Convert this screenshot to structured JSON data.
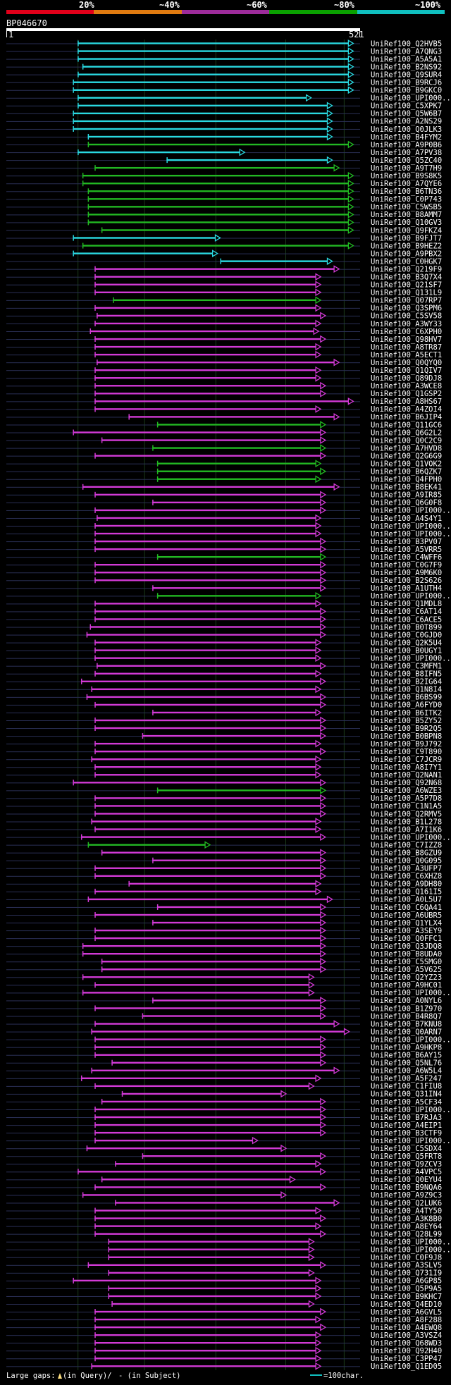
{
  "query_id": "BP046670",
  "query_start": "1",
  "query_end": "521",
  "query_length": 521,
  "scale_labels": [
    "20%",
    "~40%",
    "~60%",
    "~80%",
    "~100%"
  ],
  "identity_colors": [
    "#e2001a",
    "#e07a10",
    "#9c2b9a",
    "#0aa000",
    "#10c0c0"
  ],
  "gridlines": [
    105,
    203,
    308,
    411,
    497
  ],
  "legend": {
    "large_gaps": "Large gaps:",
    "in_query": "(in Query)/",
    "in_subject": "- (in Subject)",
    "scale_text": "=100char."
  },
  "hits": [
    {
      "id": "UniRef100_Q2HVB5",
      "start": 105,
      "end": 511,
      "color": "cyan"
    },
    {
      "id": "UniRef100_A7QNG3",
      "start": 105,
      "end": 511,
      "color": "cyan"
    },
    {
      "id": "UniRef100_A5A5A1",
      "start": 105,
      "end": 511,
      "color": "cyan"
    },
    {
      "id": "UniRef100_B2NS92",
      "start": 112,
      "end": 511,
      "color": "cyan"
    },
    {
      "id": "UniRef100_Q9SUR4",
      "start": 105,
      "end": 511,
      "color": "cyan"
    },
    {
      "id": "UniRef100_B9RCJ6",
      "start": 98,
      "end": 511,
      "color": "cyan"
    },
    {
      "id": "UniRef100_B9GKC0",
      "start": 98,
      "end": 511,
      "color": "cyan"
    },
    {
      "id": "UniRef100_UPI000..",
      "start": 105,
      "end": 449,
      "color": "cyan"
    },
    {
      "id": "UniRef100_C5XPK7",
      "start": 105,
      "end": 480,
      "color": "cyan"
    },
    {
      "id": "UniRef100_Q5W6B7",
      "start": 98,
      "end": 480,
      "color": "cyan"
    },
    {
      "id": "UniRef100_A2NS29",
      "start": 98,
      "end": 480,
      "color": "cyan"
    },
    {
      "id": "UniRef100_Q0JLK3",
      "start": 98,
      "end": 480,
      "color": "cyan"
    },
    {
      "id": "UniRef100_B4FYM2",
      "start": 120,
      "end": 480,
      "color": "cyan"
    },
    {
      "id": "UniRef100_A9P0B6",
      "start": 120,
      "end": 511,
      "color": "green"
    },
    {
      "id": "UniRef100_A7PV38",
      "start": 105,
      "end": 351,
      "color": "cyan"
    },
    {
      "id": "UniRef100_Q5ZC40",
      "start": 236,
      "end": 480,
      "color": "cyan"
    },
    {
      "id": "UniRef100_A9T7H9",
      "start": 130,
      "end": 490,
      "color": "green"
    },
    {
      "id": "UniRef100_B9S8K5",
      "start": 112,
      "end": 511,
      "color": "green"
    },
    {
      "id": "UniRef100_A7QYE6",
      "start": 112,
      "end": 511,
      "color": "green"
    },
    {
      "id": "UniRef100_B6TN36",
      "start": 120,
      "end": 511,
      "color": "green"
    },
    {
      "id": "UniRef100_C0P743",
      "start": 120,
      "end": 511,
      "color": "green"
    },
    {
      "id": "UniRef100_C5WSB5",
      "start": 120,
      "end": 511,
      "color": "green"
    },
    {
      "id": "UniRef100_B8AMM7",
      "start": 120,
      "end": 511,
      "color": "green"
    },
    {
      "id": "UniRef100_Q10GV3",
      "start": 120,
      "end": 511,
      "color": "green"
    },
    {
      "id": "UniRef100_Q9FKZ4",
      "start": 140,
      "end": 511,
      "color": "green"
    },
    {
      "id": "UniRef100_B9FJT7",
      "start": 98,
      "end": 315,
      "color": "cyan"
    },
    {
      "id": "UniRef100_B9HEZ2",
      "start": 112,
      "end": 511,
      "color": "green"
    },
    {
      "id": "UniRef100_A9PBX2",
      "start": 98,
      "end": 311,
      "color": "cyan"
    },
    {
      "id": "UniRef100_C0HGK7",
      "start": 315,
      "end": 480,
      "color": "cyan"
    },
    {
      "id": "UniRef100_Q219F9",
      "start": 130,
      "end": 490,
      "color": "magenta"
    },
    {
      "id": "UniRef100_B3Q7X4",
      "start": 130,
      "end": 463,
      "color": "magenta"
    },
    {
      "id": "UniRef100_Q21SF7",
      "start": 130,
      "end": 463,
      "color": "magenta"
    },
    {
      "id": "UniRef100_Q131L9",
      "start": 130,
      "end": 463,
      "color": "magenta"
    },
    {
      "id": "UniRef100_Q07RP7",
      "start": 157,
      "end": 463,
      "color": "green"
    },
    {
      "id": "UniRef100_Q3SPM6",
      "start": 130,
      "end": 463,
      "color": "magenta"
    },
    {
      "id": "UniRef100_C5SV58",
      "start": 133,
      "end": 470,
      "color": "magenta"
    },
    {
      "id": "UniRef100_A3WY33",
      "start": 130,
      "end": 463,
      "color": "magenta"
    },
    {
      "id": "UniRef100_C6XPH0",
      "start": 123,
      "end": 460,
      "color": "magenta"
    },
    {
      "id": "UniRef100_Q98HV7",
      "start": 130,
      "end": 470,
      "color": "magenta"
    },
    {
      "id": "UniRef100_A8TR87",
      "start": 130,
      "end": 463,
      "color": "magenta"
    },
    {
      "id": "UniRef100_A5ECT1",
      "start": 130,
      "end": 463,
      "color": "magenta"
    },
    {
      "id": "UniRef100_Q0QYQ0",
      "start": 133,
      "end": 490,
      "color": "magenta"
    },
    {
      "id": "UniRef100_Q1QIV7",
      "start": 130,
      "end": 463,
      "color": "magenta"
    },
    {
      "id": "UniRef100_Q89DJ8",
      "start": 130,
      "end": 463,
      "color": "magenta"
    },
    {
      "id": "UniRef100_A3WCE8",
      "start": 130,
      "end": 470,
      "color": "magenta"
    },
    {
      "id": "UniRef100_Q1GSP2",
      "start": 130,
      "end": 470,
      "color": "magenta"
    },
    {
      "id": "UniRef100_A8HS67",
      "start": 130,
      "end": 511,
      "color": "magenta"
    },
    {
      "id": "UniRef100_A4ZOI4",
      "start": 130,
      "end": 463,
      "color": "magenta"
    },
    {
      "id": "UniRef100_B6JIP4",
      "start": 180,
      "end": 490,
      "color": "magenta"
    },
    {
      "id": "UniRef100_Q11GC6",
      "start": 222,
      "end": 470,
      "color": "green"
    },
    {
      "id": "UniRef100_Q6G2L2",
      "start": 98,
      "end": 470,
      "color": "magenta"
    },
    {
      "id": "UniRef100_Q0C2C9",
      "start": 140,
      "end": 470,
      "color": "magenta"
    },
    {
      "id": "UniRef100_A7HVD8",
      "start": 215,
      "end": 470,
      "color": "green"
    },
    {
      "id": "UniRef100_Q2G6G9",
      "start": 130,
      "end": 470,
      "color": "magenta"
    },
    {
      "id": "UniRef100_Q1VOK2",
      "start": 222,
      "end": 463,
      "color": "green"
    },
    {
      "id": "UniRef100_B6QZK7",
      "start": 222,
      "end": 470,
      "color": "green"
    },
    {
      "id": "UniRef100_Q4FPH0",
      "start": 222,
      "end": 463,
      "color": "green"
    },
    {
      "id": "UniRef100_B8EK41",
      "start": 112,
      "end": 490,
      "color": "magenta"
    },
    {
      "id": "UniRef100_A9IR85",
      "start": 130,
      "end": 470,
      "color": "magenta"
    },
    {
      "id": "UniRef100_Q6G0F8",
      "start": 215,
      "end": 470,
      "color": "magenta"
    },
    {
      "id": "UniRef100_UPI000..",
      "start": 130,
      "end": 470,
      "color": "magenta"
    },
    {
      "id": "UniRef100_A4S4Y1",
      "start": 133,
      "end": 463,
      "color": "magenta"
    },
    {
      "id": "UniRef100_UPI000..",
      "start": 130,
      "end": 463,
      "color": "magenta"
    },
    {
      "id": "UniRef100_UPI000..",
      "start": 130,
      "end": 463,
      "color": "magenta"
    },
    {
      "id": "UniRef100_B3PV07",
      "start": 130,
      "end": 470,
      "color": "magenta"
    },
    {
      "id": "UniRef100_A5VRR5",
      "start": 130,
      "end": 470,
      "color": "magenta"
    },
    {
      "id": "UniRef100_C4WFF6",
      "start": 222,
      "end": 470,
      "color": "green"
    },
    {
      "id": "UniRef100_C0G7F9",
      "start": 130,
      "end": 470,
      "color": "magenta"
    },
    {
      "id": "UniRef100_A9M6K0",
      "start": 130,
      "end": 470,
      "color": "magenta"
    },
    {
      "id": "UniRef100_B2S626",
      "start": 130,
      "end": 470,
      "color": "magenta"
    },
    {
      "id": "UniRef100_A1UTH4",
      "start": 215,
      "end": 470,
      "color": "magenta"
    },
    {
      "id": "UniRef100_UPI000..",
      "start": 222,
      "end": 463,
      "color": "green"
    },
    {
      "id": "UniRef100_Q1MDL8",
      "start": 130,
      "end": 463,
      "color": "magenta"
    },
    {
      "id": "UniRef100_C6AT14",
      "start": 130,
      "end": 470,
      "color": "magenta"
    },
    {
      "id": "UniRef100_C6ACE5",
      "start": 130,
      "end": 470,
      "color": "magenta"
    },
    {
      "id": "UniRef100_B0T899",
      "start": 123,
      "end": 470,
      "color": "magenta"
    },
    {
      "id": "UniRef100_C0GJD0",
      "start": 118,
      "end": 470,
      "color": "magenta"
    },
    {
      "id": "UniRef100_Q2K5U4",
      "start": 130,
      "end": 463,
      "color": "magenta"
    },
    {
      "id": "UniRef100_B0UGY1",
      "start": 130,
      "end": 463,
      "color": "magenta"
    },
    {
      "id": "UniRef100_UPI000..",
      "start": 130,
      "end": 463,
      "color": "magenta"
    },
    {
      "id": "UniRef100_C3MFM1",
      "start": 133,
      "end": 470,
      "color": "magenta"
    },
    {
      "id": "UniRef100_B8IFN5",
      "start": 130,
      "end": 463,
      "color": "magenta"
    },
    {
      "id": "UniRef100_B2IG64",
      "start": 110,
      "end": 470,
      "color": "magenta"
    },
    {
      "id": "UniRef100_Q1N8I4",
      "start": 125,
      "end": 463,
      "color": "magenta"
    },
    {
      "id": "UniRef100_B6BS99",
      "start": 118,
      "end": 470,
      "color": "magenta"
    },
    {
      "id": "UniRef100_A6FYD0",
      "start": 130,
      "end": 470,
      "color": "magenta"
    },
    {
      "id": "UniRef100_B6ITK2",
      "start": 215,
      "end": 463,
      "color": "magenta"
    },
    {
      "id": "UniRef100_B5ZY52",
      "start": 130,
      "end": 470,
      "color": "magenta"
    },
    {
      "id": "UniRef100_B9R2Q5",
      "start": 130,
      "end": 470,
      "color": "magenta"
    },
    {
      "id": "UniRef100_B0BPN8",
      "start": 200,
      "end": 470,
      "color": "magenta"
    },
    {
      "id": "UniRef100_B9J792",
      "start": 130,
      "end": 463,
      "color": "magenta"
    },
    {
      "id": "UniRef100_C9T890",
      "start": 130,
      "end": 470,
      "color": "magenta"
    },
    {
      "id": "UniRef100_C7JCR9",
      "start": 125,
      "end": 463,
      "color": "magenta"
    },
    {
      "id": "UniRef100_A8I7Y1",
      "start": 130,
      "end": 463,
      "color": "magenta"
    },
    {
      "id": "UniRef100_Q2NAN1",
      "start": 130,
      "end": 463,
      "color": "magenta"
    },
    {
      "id": "UniRef100_Q92N68",
      "start": 98,
      "end": 470,
      "color": "magenta"
    },
    {
      "id": "UniRef100_A6WZE3",
      "start": 222,
      "end": 470,
      "color": "green"
    },
    {
      "id": "UniRef100_A5P7D8",
      "start": 130,
      "end": 470,
      "color": "magenta"
    },
    {
      "id": "UniRef100_C1N1A5",
      "start": 130,
      "end": 470,
      "color": "magenta"
    },
    {
      "id": "UniRef100_Q2RMV5",
      "start": 130,
      "end": 470,
      "color": "magenta"
    },
    {
      "id": "UniRef100_B1L278",
      "start": 125,
      "end": 463,
      "color": "magenta"
    },
    {
      "id": "UniRef100_A7I1K6",
      "start": 130,
      "end": 463,
      "color": "magenta"
    },
    {
      "id": "UniRef100_UPI000..",
      "start": 110,
      "end": 470,
      "color": "magenta"
    },
    {
      "id": "UniRef100_C7IZZ8",
      "start": 120,
      "end": 300,
      "color": "green"
    },
    {
      "id": "UniRef100_B8GZU9",
      "start": 140,
      "end": 470,
      "color": "magenta"
    },
    {
      "id": "UniRef100_Q0G095",
      "start": 215,
      "end": 470,
      "color": "magenta"
    },
    {
      "id": "UniRef100_A3UFP7",
      "start": 130,
      "end": 470,
      "color": "magenta"
    },
    {
      "id": "UniRef100_C6XHZ8",
      "start": 130,
      "end": 470,
      "color": "magenta"
    },
    {
      "id": "UniRef100_A9DH80",
      "start": 180,
      "end": 463,
      "color": "magenta"
    },
    {
      "id": "UniRef100_Q161I5",
      "start": 130,
      "end": 463,
      "color": "magenta"
    },
    {
      "id": "UniRef100_A0L5U7",
      "start": 120,
      "end": 480,
      "color": "magenta"
    },
    {
      "id": "UniRef100_C6QA41",
      "start": 222,
      "end": 470,
      "color": "magenta"
    },
    {
      "id": "UniRef100_A6UBR5",
      "start": 130,
      "end": 470,
      "color": "magenta"
    },
    {
      "id": "UniRef100_Q1YLX4",
      "start": 215,
      "end": 470,
      "color": "magenta"
    },
    {
      "id": "UniRef100_A3SEY9",
      "start": 130,
      "end": 470,
      "color": "magenta"
    },
    {
      "id": "UniRef100_Q0FFC1",
      "start": 130,
      "end": 470,
      "color": "magenta"
    },
    {
      "id": "UniRef100_Q3JDQ8",
      "start": 112,
      "end": 470,
      "color": "magenta"
    },
    {
      "id": "UniRef100_B8UDA0",
      "start": 112,
      "end": 470,
      "color": "magenta"
    },
    {
      "id": "UniRef100_C5SMG0",
      "start": 140,
      "end": 470,
      "color": "magenta"
    },
    {
      "id": "UniRef100_A5V625",
      "start": 140,
      "end": 470,
      "color": "magenta"
    },
    {
      "id": "UniRef100_Q2YZ23",
      "start": 112,
      "end": 453,
      "color": "magenta"
    },
    {
      "id": "UniRef100_A9HC01",
      "start": 130,
      "end": 453,
      "color": "magenta"
    },
    {
      "id": "UniRef100_UPI000..",
      "start": 112,
      "end": 453,
      "color": "magenta"
    },
    {
      "id": "UniRef100_A0NYL6",
      "start": 215,
      "end": 470,
      "color": "magenta"
    },
    {
      "id": "UniRef100_B1Z970",
      "start": 130,
      "end": 470,
      "color": "magenta"
    },
    {
      "id": "UniRef100_B4R8Q7",
      "start": 200,
      "end": 470,
      "color": "magenta"
    },
    {
      "id": "UniRef100_B7KNU8",
      "start": 130,
      "end": 490,
      "color": "magenta"
    },
    {
      "id": "UniRef100_Q0ARN7",
      "start": 125,
      "end": 505,
      "color": "magenta"
    },
    {
      "id": "UniRef100_UPI000..",
      "start": 130,
      "end": 470,
      "color": "magenta"
    },
    {
      "id": "UniRef100_A9HKP8",
      "start": 130,
      "end": 470,
      "color": "magenta"
    },
    {
      "id": "UniRef100_B6AY15",
      "start": 130,
      "end": 470,
      "color": "magenta"
    },
    {
      "id": "UniRef100_Q5NL76",
      "start": 155,
      "end": 470,
      "color": "magenta"
    },
    {
      "id": "UniRef100_A6W5L4",
      "start": 125,
      "end": 490,
      "color": "magenta"
    },
    {
      "id": "UniRef100_A5F247",
      "start": 110,
      "end": 463,
      "color": "magenta"
    },
    {
      "id": "UniRef100_C1FIU8",
      "start": 130,
      "end": 453,
      "color": "magenta"
    },
    {
      "id": "UniRef100_Q31IN4",
      "start": 170,
      "end": 412,
      "color": "magenta"
    },
    {
      "id": "UniRef100_A5CF34",
      "start": 140,
      "end": 470,
      "color": "magenta"
    },
    {
      "id": "UniRef100_UPI000..",
      "start": 130,
      "end": 470,
      "color": "magenta"
    },
    {
      "id": "UniRef100_B7RJA3",
      "start": 130,
      "end": 470,
      "color": "magenta"
    },
    {
      "id": "UniRef100_A4EIP1",
      "start": 130,
      "end": 470,
      "color": "magenta"
    },
    {
      "id": "UniRef100_B3CTF9",
      "start": 130,
      "end": 470,
      "color": "magenta"
    },
    {
      "id": "UniRef100_UPI000..",
      "start": 130,
      "end": 370,
      "color": "magenta"
    },
    {
      "id": "UniRef100_C5SDX4",
      "start": 118,
      "end": 412,
      "color": "magenta"
    },
    {
      "id": "UniRef100_Q5FRT8",
      "start": 200,
      "end": 470,
      "color": "magenta"
    },
    {
      "id": "UniRef100_Q9ZCV3",
      "start": 160,
      "end": 463,
      "color": "magenta"
    },
    {
      "id": "UniRef100_A4VPC5",
      "start": 105,
      "end": 470,
      "color": "magenta"
    },
    {
      "id": "UniRef100_Q0EYU4",
      "start": 140,
      "end": 425,
      "color": "magenta"
    },
    {
      "id": "UniRef100_B9NQA6",
      "start": 130,
      "end": 470,
      "color": "magenta"
    },
    {
      "id": "UniRef100_A9Z9C3",
      "start": 112,
      "end": 412,
      "color": "magenta"
    },
    {
      "id": "UniRef100_Q2LUK6",
      "start": 160,
      "end": 490,
      "color": "magenta"
    },
    {
      "id": "UniRef100_A4TY50",
      "start": 130,
      "end": 463,
      "color": "magenta"
    },
    {
      "id": "UniRef100_A3K8B0",
      "start": 130,
      "end": 470,
      "color": "magenta"
    },
    {
      "id": "UniRef100_A8EY64",
      "start": 130,
      "end": 463,
      "color": "magenta"
    },
    {
      "id": "UniRef100_Q28L99",
      "start": 130,
      "end": 470,
      "color": "magenta"
    },
    {
      "id": "UniRef100_UPI000..",
      "start": 150,
      "end": 453,
      "color": "magenta"
    },
    {
      "id": "UniRef100_UPI000..",
      "start": 150,
      "end": 453,
      "color": "magenta"
    },
    {
      "id": "UniRef100_C0F9J8",
      "start": 150,
      "end": 453,
      "color": "magenta"
    },
    {
      "id": "UniRef100_A3SLV5",
      "start": 120,
      "end": 470,
      "color": "magenta"
    },
    {
      "id": "UniRef100_Q731I9",
      "start": 150,
      "end": 453,
      "color": "magenta"
    },
    {
      "id": "UniRef100_A6GP85",
      "start": 98,
      "end": 463,
      "color": "magenta"
    },
    {
      "id": "UniRef100_Q5P9A5",
      "start": 150,
      "end": 463,
      "color": "magenta"
    },
    {
      "id": "UniRef100_B9KHC7",
      "start": 150,
      "end": 463,
      "color": "magenta"
    },
    {
      "id": "UniRef100_Q4ED10",
      "start": 155,
      "end": 453,
      "color": "magenta"
    },
    {
      "id": "UniRef100_A6GVL5",
      "start": 130,
      "end": 470,
      "color": "magenta"
    },
    {
      "id": "UniRef100_A8F288",
      "start": 130,
      "end": 463,
      "color": "magenta"
    },
    {
      "id": "UniRef100_A4EWQ8",
      "start": 130,
      "end": 470,
      "color": "magenta"
    },
    {
      "id": "UniRef100_A3VSZ4",
      "start": 130,
      "end": 463,
      "color": "magenta"
    },
    {
      "id": "UniRef100_Q68WD3",
      "start": 130,
      "end": 463,
      "color": "magenta"
    },
    {
      "id": "UniRef100_Q92H40",
      "start": 130,
      "end": 463,
      "color": "magenta"
    },
    {
      "id": "UniRef100_C3PP47",
      "start": 130,
      "end": 463,
      "color": "magenta"
    },
    {
      "id": "UniRef100_Q1ED05",
      "start": 125,
      "end": 463,
      "color": "magenta"
    }
  ]
}
